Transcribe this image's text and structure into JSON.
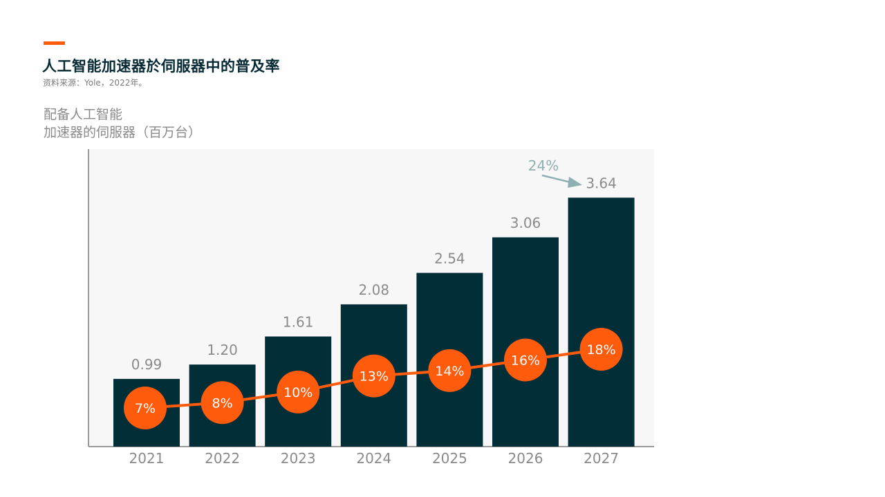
{
  "header": {
    "title": "人工智能加速器於伺服器中的普及率",
    "source": "资料来源：Yole，2022年。"
  },
  "colors": {
    "accent": "#ff5b0d",
    "bar": "#022e38",
    "plot_background": "#f7f7f7",
    "text_muted": "#8a8a8a",
    "annotation": "#8fb0b2"
  },
  "chart_data": {
    "type": "bar",
    "title": "人工智能加速器於伺服器中的普及率",
    "ylabel_lines": [
      "配备人工智能",
      "加速器的伺服器（百万台）"
    ],
    "xlabel": "",
    "categories": [
      "2021",
      "2022",
      "2023",
      "2024",
      "2025",
      "2026",
      "2027"
    ],
    "bar_value_labels": [
      "0.99",
      "1.20",
      "1.61",
      "2.08",
      "2.54",
      "3.06",
      "3.64"
    ],
    "series": [
      {
        "type": "bar",
        "values": [
          0.99,
          1.2,
          1.61,
          2.08,
          2.54,
          3.06,
          3.64
        ]
      },
      {
        "type": "line",
        "values": [
          7,
          8,
          10,
          13,
          14,
          16,
          18
        ],
        "labels": [
          "7%",
          "8%",
          "10%",
          "13%",
          "14%",
          "16%",
          "18%"
        ]
      }
    ],
    "annotation": {
      "text": "24%",
      "points_to": "2027"
    },
    "ylim": [
      0,
      4.35
    ],
    "grid": false
  }
}
